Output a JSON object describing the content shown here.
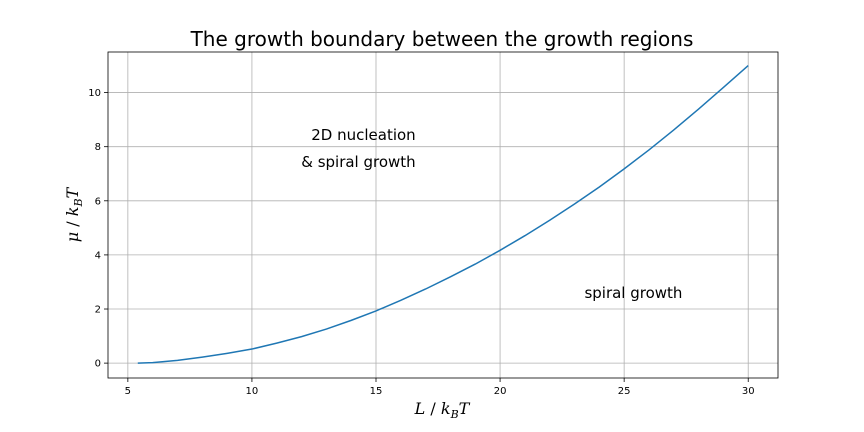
{
  "chart_data": {
    "type": "line",
    "title": "The growth boundary between the growth regions",
    "xlabel": {
      "main": "L",
      "slash": " / ",
      "base": "k",
      "sub": "B",
      "tail": "T"
    },
    "ylabel": {
      "main": "μ",
      "slash": " / ",
      "base": "k",
      "sub": "B",
      "tail": "T"
    },
    "xlim": [
      4.2,
      31.2
    ],
    "ylim": [
      -0.55,
      11.5
    ],
    "xticks": [
      5,
      10,
      15,
      20,
      25,
      30
    ],
    "yticks": [
      0,
      2,
      4,
      6,
      8,
      10
    ],
    "grid": true,
    "series": [
      {
        "color": "#1f77b4",
        "x": [
          5.4,
          6.0,
          7.0,
          8.0,
          9.0,
          10.0,
          11.0,
          12.0,
          13.0,
          14.0,
          15.0,
          16.0,
          17.0,
          18.0,
          19.0,
          20.0,
          21.0,
          22.0,
          23.0,
          24.0,
          25.0,
          26.0,
          27.0,
          28.0,
          29.0,
          30.0
        ],
        "y": [
          0.0,
          0.02,
          0.1,
          0.22,
          0.36,
          0.52,
          0.74,
          0.98,
          1.26,
          1.58,
          1.93,
          2.32,
          2.74,
          3.19,
          3.66,
          4.17,
          4.71,
          5.28,
          5.88,
          6.51,
          7.18,
          7.88,
          8.62,
          9.39,
          10.19,
          11.0
        ]
      }
    ],
    "annotations": [
      {
        "text": "2D nucleation",
        "x": 16.6,
        "y": 8.25,
        "align": "end"
      },
      {
        "text": "& spiral growth",
        "x": 16.6,
        "y": 7.25,
        "align": "end"
      },
      {
        "text": "spiral growth",
        "x": 23.4,
        "y": 2.4,
        "align": "start"
      }
    ]
  }
}
